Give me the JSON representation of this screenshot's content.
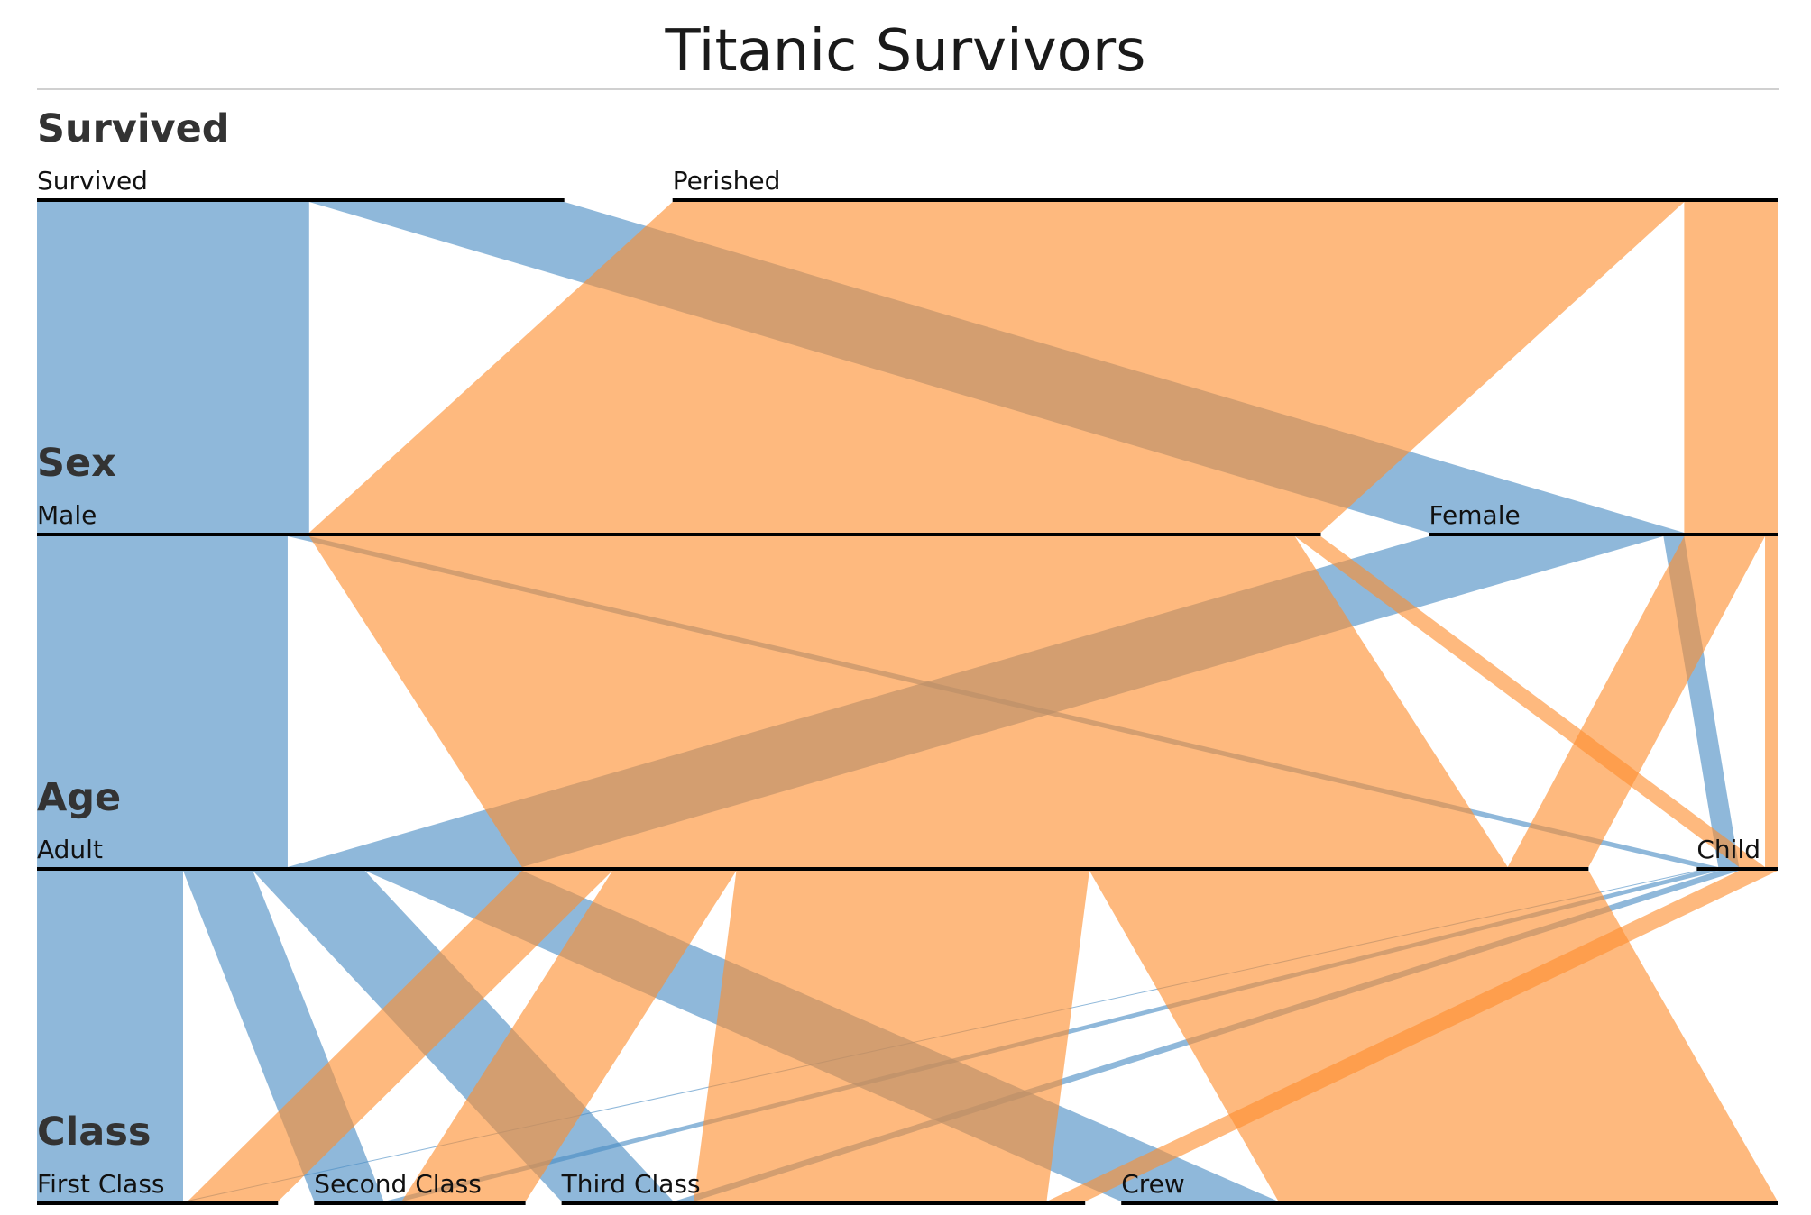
{
  "title": "Titanic Survivors",
  "colors": {
    "survived": "#4a8dc3",
    "perished": "#fd8e2e",
    "axis": "#000000"
  },
  "chart_data": {
    "type": "parallel-sets",
    "title": "Titanic Survivors",
    "dimensions": [
      {
        "name": "Survived",
        "categories": [
          "Survived",
          "Perished"
        ]
      },
      {
        "name": "Sex",
        "categories": [
          "Male",
          "Female"
        ]
      },
      {
        "name": "Age",
        "categories": [
          "Adult",
          "Child"
        ]
      },
      {
        "name": "Class",
        "categories": [
          "First Class",
          "Second Class",
          "Third Class",
          "Crew"
        ]
      }
    ],
    "records": [
      {
        "survived": "Survived",
        "sex": "Male",
        "age": "Child",
        "class": "First Class",
        "count": 5
      },
      {
        "survived": "Survived",
        "sex": "Male",
        "age": "Child",
        "class": "Second Class",
        "count": 11
      },
      {
        "survived": "Survived",
        "sex": "Male",
        "age": "Child",
        "class": "Third Class",
        "count": 13
      },
      {
        "survived": "Survived",
        "sex": "Male",
        "age": "Adult",
        "class": "First Class",
        "count": 57
      },
      {
        "survived": "Survived",
        "sex": "Male",
        "age": "Adult",
        "class": "Second Class",
        "count": 14
      },
      {
        "survived": "Survived",
        "sex": "Male",
        "age": "Adult",
        "class": "Third Class",
        "count": 75
      },
      {
        "survived": "Survived",
        "sex": "Male",
        "age": "Adult",
        "class": "Crew",
        "count": 192
      },
      {
        "survived": "Survived",
        "sex": "Female",
        "age": "Child",
        "class": "First Class",
        "count": 1
      },
      {
        "survived": "Survived",
        "sex": "Female",
        "age": "Child",
        "class": "Second Class",
        "count": 13
      },
      {
        "survived": "Survived",
        "sex": "Female",
        "age": "Child",
        "class": "Third Class",
        "count": 14
      },
      {
        "survived": "Survived",
        "sex": "Female",
        "age": "Adult",
        "class": "First Class",
        "count": 140
      },
      {
        "survived": "Survived",
        "sex": "Female",
        "age": "Adult",
        "class": "Second Class",
        "count": 80
      },
      {
        "survived": "Survived",
        "sex": "Female",
        "age": "Adult",
        "class": "Third Class",
        "count": 76
      },
      {
        "survived": "Survived",
        "sex": "Female",
        "age": "Adult",
        "class": "Crew",
        "count": 20
      },
      {
        "survived": "Perished",
        "sex": "Male",
        "age": "Child",
        "class": "Third Class",
        "count": 35
      },
      {
        "survived": "Perished",
        "sex": "Male",
        "age": "Adult",
        "class": "First Class",
        "count": 118
      },
      {
        "survived": "Perished",
        "sex": "Male",
        "age": "Adult",
        "class": "Second Class",
        "count": 154
      },
      {
        "survived": "Perished",
        "sex": "Male",
        "age": "Adult",
        "class": "Third Class",
        "count": 387
      },
      {
        "survived": "Perished",
        "sex": "Male",
        "age": "Adult",
        "class": "Crew",
        "count": 670
      },
      {
        "survived": "Perished",
        "sex": "Female",
        "age": "Child",
        "class": "Third Class",
        "count": 17
      },
      {
        "survived": "Perished",
        "sex": "Female",
        "age": "Adult",
        "class": "First Class",
        "count": 4
      },
      {
        "survived": "Perished",
        "sex": "Female",
        "age": "Adult",
        "class": "Second Class",
        "count": 13
      },
      {
        "survived": "Perished",
        "sex": "Female",
        "age": "Adult",
        "class": "Third Class",
        "count": 89
      },
      {
        "survived": "Perished",
        "sex": "Female",
        "age": "Adult",
        "class": "Crew",
        "count": 3
      }
    ]
  }
}
